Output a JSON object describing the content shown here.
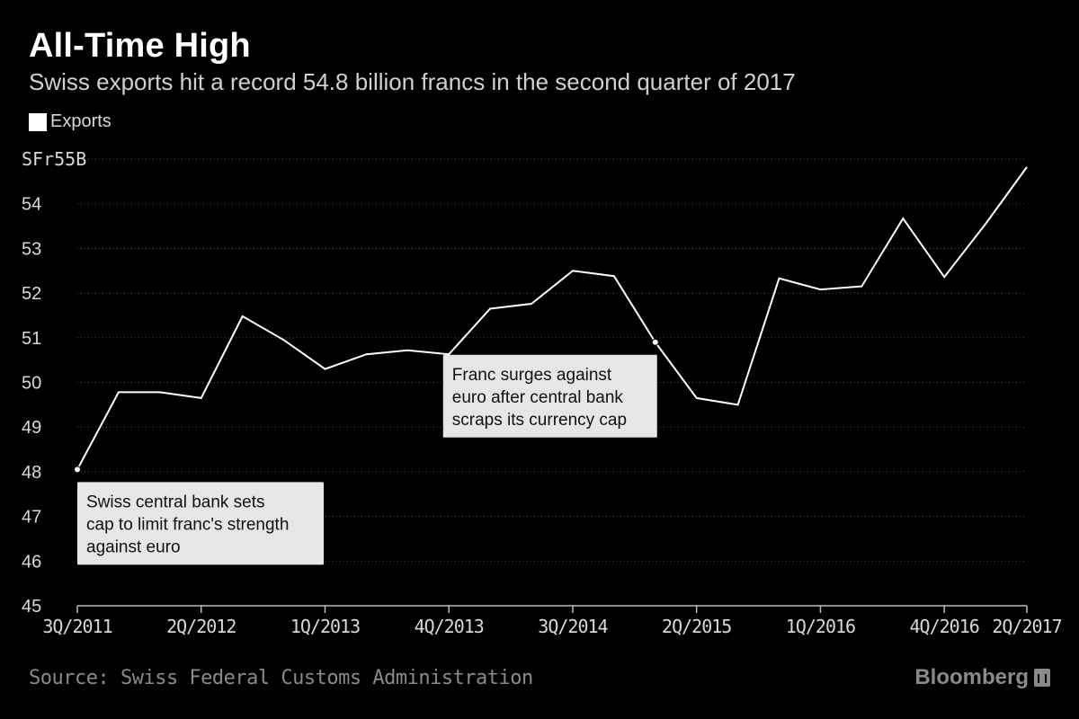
{
  "header": {
    "title": "All-Time High",
    "subtitle": "Swiss exports hit a record 54.8 billion francs in the second quarter of 2017"
  },
  "legend": {
    "label": "Exports"
  },
  "footer": {
    "source": "Source: Swiss Federal Customs Administration",
    "brand": "Bloomberg"
  },
  "colors": {
    "background": "#000000",
    "line": "#ffffff",
    "grid": "#555555",
    "annotation_box": "#e6e6e6"
  },
  "chart_data": {
    "type": "line",
    "title": "All-Time High",
    "subtitle": "Swiss exports hit a record 54.8 billion francs in the second quarter of 2017",
    "ylim": [
      45,
      55
    ],
    "yticks": [
      45,
      46,
      47,
      48,
      49,
      50,
      51,
      52,
      53,
      54,
      55
    ],
    "ytick_labels": [
      "45",
      "46",
      "47",
      "48",
      "49",
      "50",
      "51",
      "52",
      "53",
      "54",
      "SFr55B"
    ],
    "xticks": [
      "3Q/2011",
      "2Q/2012",
      "1Q/2013",
      "4Q/2013",
      "3Q/2014",
      "2Q/2015",
      "1Q/2016",
      "4Q/2016",
      "2Q/2017"
    ],
    "x": [
      "3Q/2011",
      "4Q/2011",
      "1Q/2012",
      "2Q/2012",
      "3Q/2012",
      "4Q/2012",
      "1Q/2013",
      "2Q/2013",
      "3Q/2013",
      "4Q/2013",
      "1Q/2014",
      "2Q/2014",
      "3Q/2014",
      "4Q/2014",
      "1Q/2015",
      "2Q/2015",
      "3Q/2015",
      "4Q/2015",
      "1Q/2016",
      "2Q/2016",
      "3Q/2016",
      "4Q/2016",
      "1Q/2017",
      "2Q/2017"
    ],
    "series": [
      {
        "name": "Exports",
        "values": [
          48.05,
          49.78,
          49.78,
          49.65,
          51.48,
          50.95,
          50.3,
          50.63,
          50.72,
          50.63,
          51.65,
          51.76,
          52.5,
          52.38,
          50.9,
          49.65,
          49.5,
          52.33,
          52.08,
          52.15,
          53.67,
          52.36,
          53.55,
          54.82
        ]
      }
    ],
    "grid": true,
    "legend_position": "top-left",
    "annotations": [
      {
        "x": "3Q/2011",
        "y": 48.05,
        "text": "Swiss central bank sets cap to limit franc's strength against euro",
        "lines": [
          "Swiss central bank sets",
          "cap to limit franc's strength",
          "against euro"
        ]
      },
      {
        "x": "1Q/2015",
        "y": 50.9,
        "text": "Franc surges against euro after central bank scraps its currency cap",
        "lines": [
          "Franc surges against",
          "euro after central bank",
          "scraps its currency cap"
        ]
      }
    ]
  }
}
